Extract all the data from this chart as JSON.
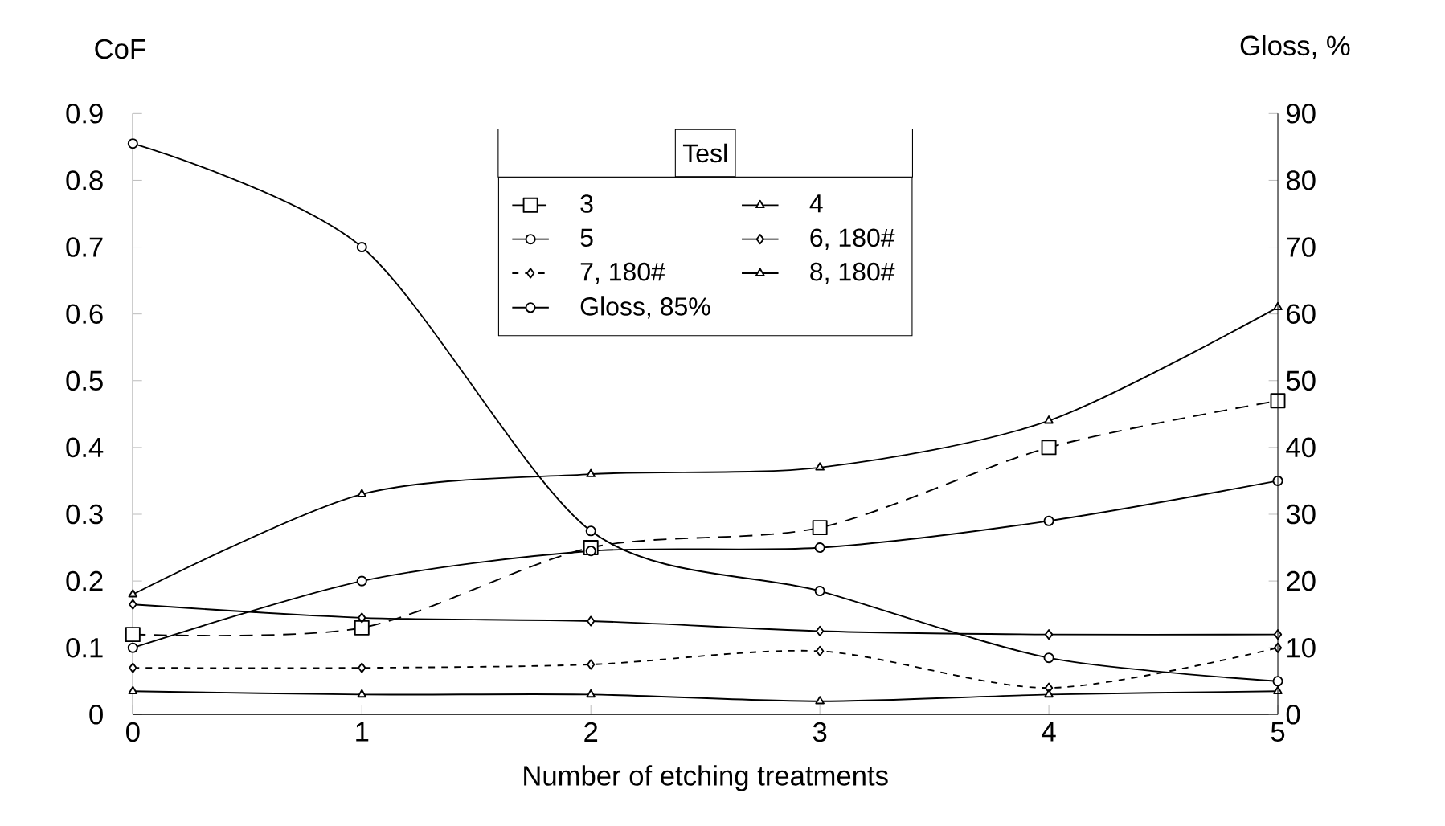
{
  "chart_data": {
    "type": "line",
    "xlabel": "Number of etching treatments",
    "ylabel": "CoF",
    "y2label": "Gloss, %",
    "legend_title": "Tesl",
    "x": [
      0,
      1,
      2,
      3,
      4,
      5
    ],
    "xlim": [
      0,
      5
    ],
    "xticks": [
      0,
      1,
      2,
      3,
      4,
      5
    ],
    "ylim": [
      0,
      0.9
    ],
    "yticks": [
      0,
      0.1,
      0.2,
      0.3,
      0.4,
      0.5,
      0.6,
      0.7,
      0.8,
      0.9
    ],
    "y2lim": [
      0,
      90
    ],
    "y2ticks": [
      0,
      10,
      20,
      30,
      40,
      50,
      60,
      70,
      80,
      90
    ],
    "legend": "top",
    "grid": false,
    "series": [
      {
        "name": "3",
        "color": "#000000",
        "marker": "square",
        "line_style": "dashed",
        "values": [
          0.12,
          0.13,
          0.25,
          0.28,
          0.4,
          0.47
        ]
      },
      {
        "name": "4",
        "color": "#000000",
        "marker": "triangle",
        "line_style": "solid",
        "values": [
          0.18,
          0.33,
          0.36,
          0.37,
          0.44,
          0.61
        ]
      },
      {
        "name": "5",
        "color": "#000000",
        "marker": "circle",
        "line_style": "solid",
        "values": [
          0.1,
          0.2,
          0.245,
          0.25,
          0.29,
          0.35
        ]
      },
      {
        "name": "6, 180#",
        "color": "#000000",
        "marker": "diamond",
        "line_style": "solid",
        "values": [
          0.165,
          0.145,
          0.14,
          0.125,
          0.12,
          0.12
        ]
      },
      {
        "name": "7, 180#",
        "color": "#000000",
        "marker": "diamond",
        "line_style": "dotted",
        "values": [
          0.07,
          0.07,
          0.075,
          0.095,
          0.04,
          0.1
        ]
      },
      {
        "name": "8, 180#",
        "color": "#000000",
        "marker": "triangle",
        "line_style": "solid",
        "values": [
          0.035,
          0.03,
          0.03,
          0.02,
          0.03,
          0.035
        ]
      },
      {
        "name": "Gloss, 85%",
        "color": "#000000",
        "marker": "circle",
        "line_style": "solid",
        "axis": "y2",
        "values": [
          85.5,
          70,
          27.5,
          18.5,
          8.5,
          5
        ]
      }
    ]
  }
}
